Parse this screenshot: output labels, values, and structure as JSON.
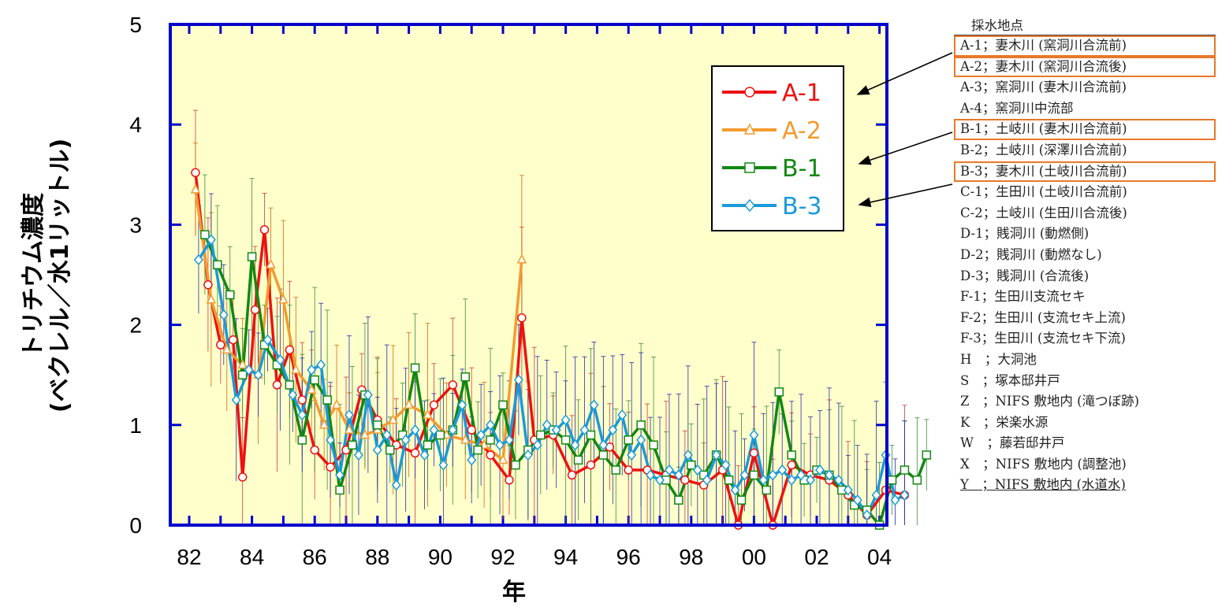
{
  "chart_data": {
    "type": "line",
    "ylabel_line1": "トリチウム濃度",
    "ylabel_line2": "(ベクレル／水1リットル)",
    "xlabel": "年",
    "xlim": [
      1982,
      2005.6
    ],
    "ylim": [
      0,
      5
    ],
    "x_ticks": [
      1982,
      1984,
      1986,
      1988,
      1990,
      1992,
      1994,
      1996,
      1998,
      2000,
      2002,
      2004
    ],
    "x_tick_labels": [
      "82",
      "84",
      "86",
      "88",
      "90",
      "92",
      "94",
      "96",
      "98",
      "00",
      "02",
      "04"
    ],
    "y_ticks": [
      0,
      1,
      2,
      3,
      4,
      5
    ],
    "y_tick_labels": [
      "0",
      "1",
      "2",
      "3",
      "4",
      "5"
    ],
    "background_color": "#ffffcc",
    "frame_color": "#0000cc",
    "legend_position": "top-right",
    "series": [
      {
        "name": "A-1",
        "color": "#ee1111",
        "marker": "circle",
        "x": [
          1982.2,
          1982.6,
          1983.0,
          1983.4,
          1983.7,
          1984.1,
          1984.4,
          1984.8,
          1985.2,
          1985.6,
          1986.0,
          1986.5,
          1987.0,
          1987.5,
          1988.0,
          1988.6,
          1989.2,
          1989.8,
          1990.4,
          1991.0,
          1991.6,
          1992.2,
          1992.6,
          1993.0,
          1993.6,
          1994.2,
          1994.8,
          1995.4,
          1996.0,
          1996.6,
          1997.2,
          1997.8,
          1998.4,
          1999.0,
          1999.5,
          2000.0,
          2000.6,
          2001.2,
          2001.8,
          2002.4,
          2003.0,
          2003.6,
          2004.2,
          2004.8
        ],
        "y": [
          3.52,
          2.4,
          1.8,
          1.85,
          0.48,
          2.15,
          2.95,
          1.4,
          1.75,
          1.25,
          0.75,
          0.58,
          0.75,
          1.35,
          1.05,
          0.8,
          0.72,
          1.2,
          1.4,
          0.95,
          0.7,
          0.45,
          2.07,
          0.85,
          0.9,
          0.5,
          0.6,
          0.78,
          0.55,
          0.55,
          0.5,
          0.45,
          0.4,
          0.55,
          0.0,
          0.72,
          0.0,
          0.6,
          0.5,
          0.45,
          0.3,
          0.1,
          0.35,
          0.3
        ]
      },
      {
        "name": "A-2",
        "color": "#f39b2f",
        "marker": "triangle",
        "x": [
          1982.2,
          1982.7,
          1983.2,
          1983.7,
          1984.2,
          1984.6,
          1985.0,
          1985.4,
          1985.9,
          1986.3,
          1986.7,
          1987.1,
          1987.6,
          1988.0,
          1988.5,
          1989.0,
          1989.6,
          1990.2,
          1990.8,
          1991.4,
          1992.0,
          1992.6
        ],
        "y": [
          3.35,
          2.25,
          1.75,
          1.6,
          1.5,
          2.6,
          2.25,
          1.55,
          1.35,
          1.0,
          1.2,
          0.95,
          0.9,
          0.95,
          1.05,
          1.2,
          1.1,
          0.9,
          0.85,
          0.8,
          0.65,
          2.65
        ]
      },
      {
        "name": "B-1",
        "color": "#118811",
        "marker": "square",
        "x": [
          1982.5,
          1982.9,
          1983.3,
          1983.7,
          1984.0,
          1984.4,
          1984.8,
          1985.2,
          1985.6,
          1986.0,
          1986.4,
          1986.8,
          1987.2,
          1987.6,
          1988.0,
          1988.4,
          1988.8,
          1989.2,
          1989.6,
          1990.0,
          1990.4,
          1990.8,
          1991.2,
          1991.6,
          1992.0,
          1992.4,
          1992.8,
          1993.2,
          1993.6,
          1994.0,
          1994.4,
          1994.8,
          1995.2,
          1995.6,
          1996.0,
          1996.4,
          1996.8,
          1997.2,
          1997.6,
          1998.0,
          1998.4,
          1998.8,
          1999.2,
          1999.6,
          2000.0,
          2000.4,
          2000.8,
          2001.2,
          2001.6,
          2002.0,
          2002.4,
          2002.8,
          2003.2,
          2003.6,
          2004.0,
          2004.4,
          2004.8,
          2005.2,
          2005.5
        ],
        "y": [
          2.9,
          2.6,
          2.3,
          1.5,
          2.68,
          1.8,
          1.6,
          1.4,
          0.85,
          1.45,
          1.25,
          0.35,
          0.8,
          1.3,
          1.0,
          0.75,
          0.9,
          1.57,
          0.8,
          0.9,
          0.95,
          1.48,
          0.75,
          0.85,
          1.2,
          0.6,
          0.75,
          0.9,
          0.95,
          0.85,
          0.65,
          0.9,
          0.7,
          0.55,
          0.85,
          1.0,
          0.8,
          0.45,
          0.25,
          0.6,
          0.5,
          0.7,
          0.45,
          0.25,
          0.5,
          0.35,
          1.33,
          0.7,
          0.45,
          0.55,
          0.5,
          0.35,
          0.2,
          0.15,
          0.0,
          0.45,
          0.55,
          0.45,
          0.7
        ]
      },
      {
        "name": "B-3",
        "color": "#1a9ad8",
        "marker": "diamond",
        "x": [
          1982.3,
          1982.7,
          1983.1,
          1983.5,
          1983.9,
          1984.2,
          1984.5,
          1984.9,
          1985.3,
          1985.6,
          1985.9,
          1986.2,
          1986.5,
          1986.8,
          1987.1,
          1987.4,
          1987.7,
          1988.0,
          1988.3,
          1988.6,
          1988.9,
          1989.2,
          1989.5,
          1989.8,
          1990.1,
          1990.4,
          1990.7,
          1991.0,
          1991.3,
          1991.6,
          1991.9,
          1992.2,
          1992.5,
          1992.8,
          1993.1,
          1993.4,
          1993.7,
          1994.0,
          1994.3,
          1994.6,
          1994.9,
          1995.2,
          1995.5,
          1995.8,
          1996.1,
          1996.4,
          1996.7,
          1997.0,
          1997.3,
          1997.6,
          1997.9,
          1998.2,
          1998.5,
          1998.8,
          1999.1,
          1999.4,
          1999.7,
          2000.0,
          2000.3,
          2000.6,
          2000.9,
          2001.2,
          2001.5,
          2001.8,
          2002.1,
          2002.4,
          2002.7,
          2003.0,
          2003.3,
          2003.6,
          2003.9,
          2004.2,
          2004.5,
          2004.8
        ],
        "y": [
          2.65,
          2.85,
          2.1,
          1.25,
          1.55,
          1.5,
          1.85,
          1.65,
          1.3,
          1.1,
          1.55,
          1.6,
          0.85,
          0.5,
          1.1,
          0.7,
          1.3,
          0.75,
          0.9,
          0.4,
          0.85,
          0.95,
          0.7,
          0.95,
          0.6,
          0.95,
          1.2,
          0.65,
          0.9,
          1.0,
          0.8,
          0.85,
          1.45,
          0.7,
          0.8,
          1.0,
          0.95,
          1.05,
          0.8,
          0.95,
          1.2,
          0.8,
          0.95,
          1.1,
          0.7,
          0.85,
          0.5,
          0.45,
          0.55,
          0.5,
          0.7,
          0.55,
          0.45,
          0.7,
          0.6,
          0.35,
          0.5,
          0.9,
          0.45,
          0.5,
          0.55,
          0.45,
          0.5,
          0.45,
          0.55,
          0.5,
          0.45,
          0.35,
          0.25,
          0.1,
          0.3,
          0.7,
          0.25,
          0.3
        ]
      }
    ]
  },
  "stations": {
    "header": "採水地点",
    "items": [
      {
        "text": "A-1；妻木川 (窯洞川合流前)",
        "hl": true
      },
      {
        "text": "A-2；妻木川 (窯洞川合流後)",
        "hl": true
      },
      {
        "text": "A-3；窯洞川 (妻木川合流前)",
        "hl": false
      },
      {
        "text": "A-4；窯洞川中流部",
        "hl": false
      },
      {
        "text": "B-1；土岐川 (妻木川合流前)",
        "hl": true
      },
      {
        "text": "B-2；土岐川 (深澤川合流前)",
        "hl": false
      },
      {
        "text": "B-3；妻木川 (土岐川合流前)",
        "hl": true
      },
      {
        "text": "C-1；生田川 (土岐川合流前)",
        "hl": false
      },
      {
        "text": "C-2；土岐川 (生田川合流後)",
        "hl": false
      },
      {
        "text": "D-1；賎洞川 (動燃側)",
        "hl": false
      },
      {
        "text": "D-2；賎洞川 (動燃なし)",
        "hl": false
      },
      {
        "text": "D-3；賎洞川 (合流後)",
        "hl": false
      },
      {
        "text": "F-1；生田川支流セキ",
        "hl": false
      },
      {
        "text": "F-2；生田川 (支流セキ上流)",
        "hl": false
      },
      {
        "text": "F-3；生田川 (支流セキ下流)",
        "hl": false
      },
      {
        "text": "H　；大洞池",
        "hl": false
      },
      {
        "text": "S　；塚本邸井戸",
        "hl": false
      },
      {
        "text": "Z　；NIFS 敷地内 (滝つぼ跡)",
        "hl": false
      },
      {
        "text": "K　；栄楽水源",
        "hl": false
      },
      {
        "text": "W　；藤若邸井戸",
        "hl": false
      },
      {
        "text": "X　；NIFS 敷地内 (調整池)",
        "hl": false
      },
      {
        "text": "Y　；NIFS 敷地内 (水道水)",
        "hl": false
      }
    ]
  },
  "arrow_color": "#000000",
  "highlight_color": "#e8782a"
}
